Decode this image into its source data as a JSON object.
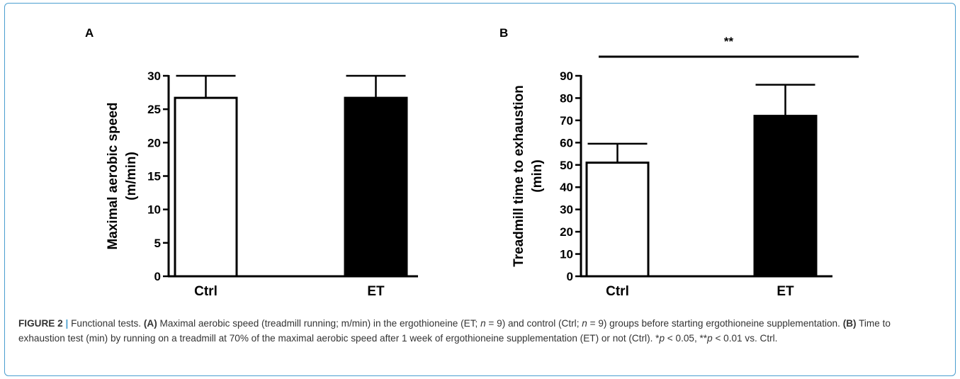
{
  "figure": {
    "label": "FIGURE 2",
    "separator": "|",
    "caption_segments": [
      {
        "t": "Functional tests. ",
        "b": false,
        "i": false
      },
      {
        "t": "(A)",
        "b": true,
        "i": false
      },
      {
        "t": " Maximal aerobic speed (treadmill running; m/min) in the ergothioneine (ET; ",
        "b": false,
        "i": false
      },
      {
        "t": "n",
        "b": false,
        "i": true
      },
      {
        "t": " = 9) and control (Ctrl; ",
        "b": false,
        "i": false
      },
      {
        "t": "n",
        "b": false,
        "i": true
      },
      {
        "t": " = 9) groups before starting ergothioneine supplementation. ",
        "b": false,
        "i": false
      },
      {
        "t": "(B)",
        "b": true,
        "i": false
      },
      {
        "t": " Time to exhaustion test (min) by running on a treadmill at 70% of the maximal aerobic speed after 1 week of ergothioneine supplementation (ET) or not (Ctrl). *",
        "b": false,
        "i": false
      },
      {
        "t": "p",
        "b": false,
        "i": true
      },
      {
        "t": " < 0.05, **",
        "b": false,
        "i": false
      },
      {
        "t": "p",
        "b": false,
        "i": true
      },
      {
        "t": " < 0.01 vs. Ctrl.",
        "b": false,
        "i": false
      }
    ]
  },
  "colors": {
    "frame": "#4a9ecf",
    "bar_ctrl": "#ffffff",
    "bar_et": "#000000",
    "axis": "#000000"
  },
  "chart_data": [
    {
      "panel": "A",
      "type": "bar",
      "categories": [
        "Ctrl",
        "ET"
      ],
      "values": [
        26.7,
        26.7
      ],
      "errors": [
        3.3,
        3.3
      ],
      "bar_fills": [
        "white",
        "black"
      ],
      "ylabel_lines": [
        "Maximal aerobic speed",
        "(m/min)"
      ],
      "ylim": [
        0,
        30
      ],
      "yticks": [
        0,
        5,
        10,
        15,
        20,
        25,
        30
      ],
      "ytick_labels": [
        "0",
        "5",
        "10",
        "15",
        "20",
        "25",
        "30"
      ],
      "significance": null,
      "grid": false
    },
    {
      "panel": "B",
      "type": "bar",
      "categories": [
        "Ctrl",
        "ET"
      ],
      "values": [
        51,
        72
      ],
      "errors": [
        8.5,
        14
      ],
      "bar_fills": [
        "white",
        "black"
      ],
      "ylabel_lines": [
        "Treadmill time to exhaustion",
        "(min)"
      ],
      "ylim": [
        0,
        90
      ],
      "yticks": [
        0,
        10,
        20,
        30,
        40,
        50,
        60,
        70,
        80,
        90
      ],
      "ytick_labels": [
        "0",
        "10",
        "20",
        "30",
        "40",
        "50",
        "60",
        "70",
        "80",
        "90"
      ],
      "significance": "**",
      "grid": false
    }
  ]
}
